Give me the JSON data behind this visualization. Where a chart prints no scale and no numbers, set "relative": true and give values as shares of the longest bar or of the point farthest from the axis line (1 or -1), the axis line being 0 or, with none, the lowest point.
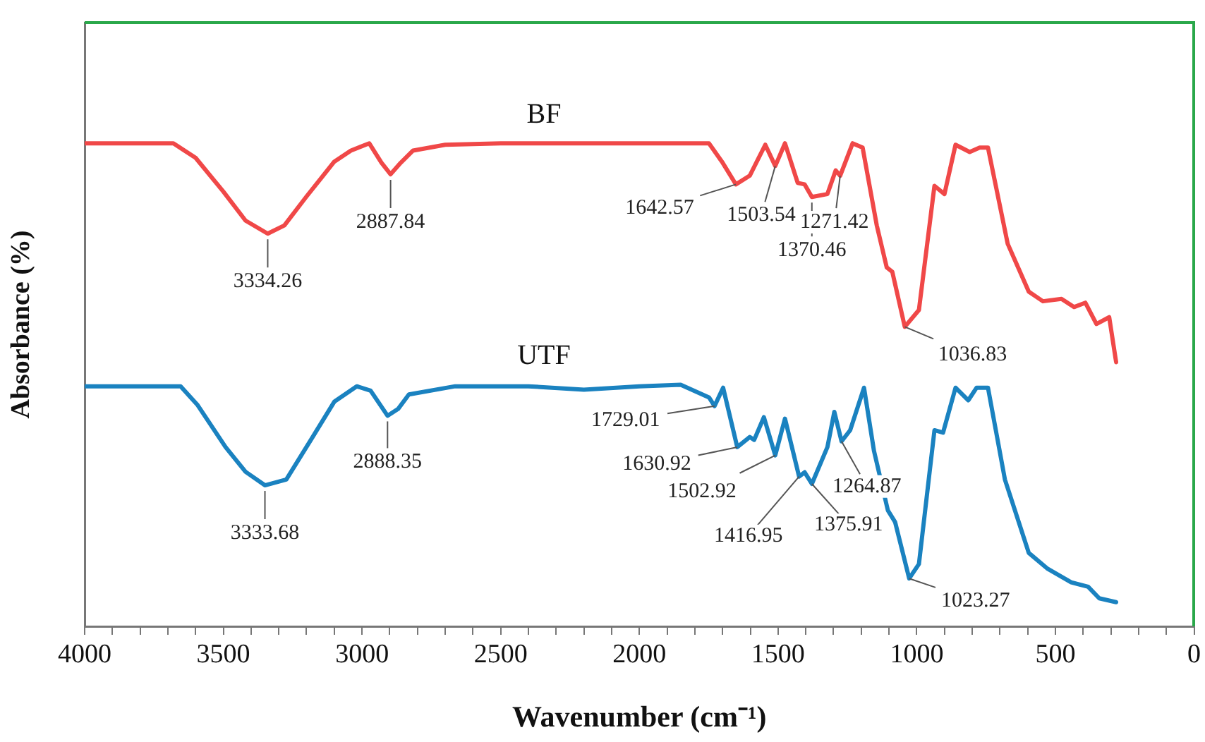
{
  "chart_data": {
    "type": "line",
    "relative": true,
    "xlabel": "Wavenumber (cm⁻¹)",
    "ylabel": "Absorbance (%)",
    "xlim": [
      4000,
      0
    ],
    "xticks": [
      {
        "value": 4000,
        "label": "4000"
      },
      {
        "value": 3900,
        "label": null
      },
      {
        "value": 3800,
        "label": null
      },
      {
        "value": 3700,
        "label": null
      },
      {
        "value": 3600,
        "label": null
      },
      {
        "value": 3500,
        "label": "3500"
      },
      {
        "value": 3400,
        "label": null
      },
      {
        "value": 3300,
        "label": null
      },
      {
        "value": 3200,
        "label": null
      },
      {
        "value": 3100,
        "label": null
      },
      {
        "value": 3000,
        "label": "3000"
      },
      {
        "value": 2900,
        "label": null
      },
      {
        "value": 2800,
        "label": null
      },
      {
        "value": 2700,
        "label": null
      },
      {
        "value": 2600,
        "label": null
      },
      {
        "value": 2500,
        "label": "2500"
      },
      {
        "value": 2400,
        "label": null
      },
      {
        "value": 2300,
        "label": null
      },
      {
        "value": 2200,
        "label": null
      },
      {
        "value": 2100,
        "label": null
      },
      {
        "value": 2000,
        "label": "2000"
      },
      {
        "value": 1900,
        "label": null
      },
      {
        "value": 1800,
        "label": null
      },
      {
        "value": 1700,
        "label": null
      },
      {
        "value": 1600,
        "label": null
      },
      {
        "value": 1500,
        "label": "1500"
      },
      {
        "value": 1400,
        "label": null
      },
      {
        "value": 1300,
        "label": null
      },
      {
        "value": 1200,
        "label": null
      },
      {
        "value": 1100,
        "label": null
      },
      {
        "value": 1000,
        "label": "1000"
      },
      {
        "value": 900,
        "label": null
      },
      {
        "value": 800,
        "label": null
      },
      {
        "value": 700,
        "label": null
      },
      {
        "value": 600,
        "label": null
      },
      {
        "value": 500,
        "label": "500"
      },
      {
        "value": 400,
        "label": null
      },
      {
        "value": 300,
        "label": null
      },
      {
        "value": 200,
        "label": null
      },
      {
        "value": 100,
        "label": null
      },
      {
        "value": 0,
        "label": "0"
      }
    ],
    "grid": false,
    "legend": false,
    "marker": "none",
    "line_style": "solid",
    "series": [
      {
        "name": "BF",
        "color": "#f04848",
        "x": [
          4000,
          3680,
          3600,
          3500,
          3420,
          3340,
          3280,
          3200,
          3100,
          3040,
          2974,
          2930,
          2897,
          2860,
          2816,
          2700,
          2500,
          2200,
          1900,
          1749,
          1700,
          1652,
          1602,
          1546,
          1510,
          1475,
          1429,
          1404,
          1378,
          1322,
          1292,
          1276,
          1231,
          1195,
          1144,
          1108,
          1088,
          1043,
          992,
          936,
          900,
          860,
          809,
          773,
          743,
          672,
          596,
          545,
          478,
          433,
          392,
          352,
          306,
          281
        ],
        "values": [
          1.0,
          1.0,
          0.97,
          0.9,
          0.84,
          0.813,
          0.83,
          0.89,
          0.962,
          0.985,
          1.0,
          0.96,
          0.936,
          0.96,
          0.985,
          0.997,
          1.0,
          1.0,
          1.0,
          1.0,
          0.96,
          0.915,
          0.933,
          0.997,
          0.953,
          1.0,
          0.918,
          0.915,
          0.889,
          0.895,
          0.944,
          0.933,
          1.0,
          0.991,
          0.83,
          0.743,
          0.734,
          0.62,
          0.655,
          0.912,
          0.895,
          0.997,
          0.982,
          0.991,
          0.991,
          0.792,
          0.693,
          0.673,
          0.678,
          0.661,
          0.67,
          0.626,
          0.64,
          0.547
        ]
      },
      {
        "name": "UTF",
        "color": "#1a82c0",
        "x": [
          4000,
          3654,
          3594,
          3492,
          3420,
          3350,
          3273,
          3180,
          3100,
          3019,
          2969,
          2908,
          2870,
          2831,
          2664,
          2400,
          2200,
          2000,
          1851,
          1749,
          1729,
          1698,
          1647,
          1602,
          1586,
          1551,
          1510,
          1475,
          1424,
          1404,
          1378,
          1322,
          1297,
          1271,
          1240,
          1190,
          1154,
          1104,
          1078,
          1027,
          992,
          936,
          905,
          860,
          814,
          784,
          743,
          682,
          596,
          530,
          443,
          382,
          342,
          281
        ],
        "values": [
          0.497,
          0.497,
          0.459,
          0.371,
          0.32,
          0.292,
          0.304,
          0.39,
          0.465,
          0.497,
          0.488,
          0.436,
          0.45,
          0.48,
          0.497,
          0.497,
          0.49,
          0.497,
          0.5,
          0.474,
          0.456,
          0.494,
          0.371,
          0.392,
          0.386,
          0.433,
          0.354,
          0.43,
          0.31,
          0.319,
          0.295,
          0.371,
          0.444,
          0.383,
          0.406,
          0.494,
          0.363,
          0.24,
          0.216,
          0.099,
          0.129,
          0.406,
          0.401,
          0.494,
          0.468,
          0.494,
          0.494,
          0.304,
          0.152,
          0.12,
          0.091,
          0.082,
          0.058,
          0.05
        ]
      }
    ],
    "annotations": [
      {
        "text": "3334.26",
        "x": 3340,
        "y": 0.813
      },
      {
        "text": "2887.84",
        "x": 2897,
        "y": 0.936
      },
      {
        "text": "1642.57",
        "x": 1652,
        "y": 0.915
      },
      {
        "text": "1503.54",
        "x": 1510,
        "y": 0.953
      },
      {
        "text": "1370.46",
        "x": 1378,
        "y": 0.889
      },
      {
        "text": "1271.42",
        "x": 1276,
        "y": 0.933
      },
      {
        "text": "1036.83",
        "x": 1043,
        "y": 0.62
      },
      {
        "text": "3333.68",
        "x": 3350,
        "y": 0.292
      },
      {
        "text": "2888.35",
        "x": 2908,
        "y": 0.436
      },
      {
        "text": "1729.01",
        "x": 1729,
        "y": 0.456
      },
      {
        "text": "1630.92",
        "x": 1647,
        "y": 0.371
      },
      {
        "text": "1502.92",
        "x": 1510,
        "y": 0.354
      },
      {
        "text": "1416.95",
        "x": 1424,
        "y": 0.31
      },
      {
        "text": "1375.91",
        "x": 1378,
        "y": 0.295
      },
      {
        "text": "1264.87",
        "x": 1271,
        "y": 0.383
      },
      {
        "text": "1023.27",
        "x": 1027,
        "y": 0.099
      }
    ]
  }
}
